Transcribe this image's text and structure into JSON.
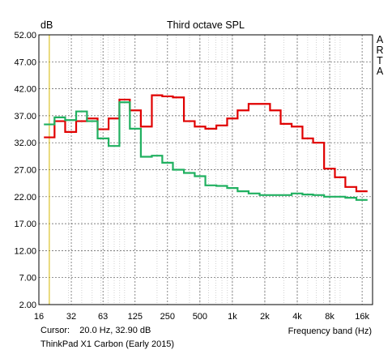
{
  "chart_data": {
    "type": "line",
    "title": "Third octave SPL",
    "ylabel": "dB",
    "xlabel": "Frequency band (Hz)",
    "side_label": [
      "A",
      "R",
      "T",
      "A"
    ],
    "x_scale": "log",
    "xlim": [
      16,
      20000
    ],
    "ylim": [
      2,
      52
    ],
    "y_ticks": [
      "2.00",
      "7.00",
      "12.00",
      "17.00",
      "22.00",
      "27.00",
      "32.00",
      "37.00",
      "42.00",
      "47.00",
      "52.00"
    ],
    "x_ticks": [
      {
        "label": "16",
        "value": 16
      },
      {
        "label": "32",
        "value": 32
      },
      {
        "label": "63",
        "value": 63
      },
      {
        "label": "125",
        "value": 125
      },
      {
        "label": "250",
        "value": 250
      },
      {
        "label": "500",
        "value": 500
      },
      {
        "label": "1k",
        "value": 1000
      },
      {
        "label": "2k",
        "value": 2000
      },
      {
        "label": "4k",
        "value": 4000
      },
      {
        "label": "8k",
        "value": 8000
      },
      {
        "label": "16k",
        "value": 16000
      }
    ],
    "grid": true,
    "cursor_x": 20,
    "cursor_color": "#d6b800",
    "bands": [
      20,
      25,
      31.5,
      40,
      50,
      63,
      80,
      100,
      125,
      160,
      200,
      250,
      315,
      400,
      500,
      630,
      800,
      1000,
      1250,
      1600,
      2000,
      2500,
      3150,
      4000,
      5000,
      6300,
      8000,
      10000,
      12500,
      16000
    ],
    "series": [
      {
        "color": "#e00000",
        "values": [
          33.0,
          36.0,
          34.0,
          36.0,
          36.5,
          34.5,
          36.5,
          40.0,
          38.0,
          35.0,
          40.8,
          40.6,
          40.4,
          36.0,
          35.0,
          34.6,
          35.2,
          36.5,
          38.0,
          39.2,
          39.2,
          38.0,
          35.5,
          35.0,
          32.8,
          32.0,
          27.2,
          25.6,
          23.8,
          23.0
        ]
      },
      {
        "color": "#20b060",
        "values": [
          35.4,
          36.7,
          36.2,
          37.8,
          36.0,
          32.8,
          31.4,
          39.5,
          34.6,
          29.4,
          29.6,
          28.3,
          27.0,
          26.4,
          25.8,
          24.1,
          24.0,
          23.6,
          23.0,
          22.6,
          22.3,
          22.3,
          22.3,
          22.6,
          22.4,
          22.3,
          22.0,
          22.0,
          21.8,
          21.4
        ]
      }
    ]
  },
  "footer": {
    "cursor_label": "Cursor:",
    "cursor_value": "20.0 Hz, 32.90 dB",
    "device_name": "ThinkPad X1 Carbon (Early 2015)"
  }
}
